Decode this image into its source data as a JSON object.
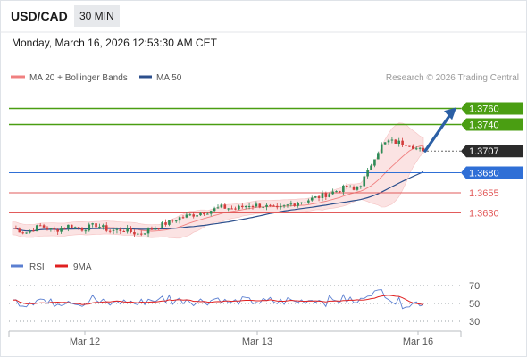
{
  "header": {
    "symbol": "USD/CAD",
    "interval": "30 MIN",
    "timestamp": "Monday, March 16, 2026 12:53:30 AM CET"
  },
  "legend": {
    "bb_label": "MA 20 + Bollinger Bands",
    "ma50_label": "MA 50",
    "source": "Research © 2026 Trading Central"
  },
  "rsi_legend": {
    "rsi_label": "RSI",
    "ma_label": "9MA"
  },
  "colors": {
    "up": "#2e8b57",
    "down": "#d23c3c",
    "green_level": "#4a9e12",
    "blue_level": "#2f6fd6",
    "red_level": "#e25b5b",
    "arrow": "#2b5fa5",
    "ma50": "#2c4f8c",
    "bb": "#f08080"
  },
  "levels": [
    {
      "value": 1.376,
      "label": "1.3760",
      "kind": "resistance"
    },
    {
      "value": 1.374,
      "label": "1.3740",
      "kind": "resistance"
    },
    {
      "value": 1.368,
      "label": "1.3680",
      "kind": "pivot"
    },
    {
      "value": 1.3655,
      "label": "1.3655",
      "kind": "support"
    },
    {
      "value": 1.363,
      "label": "1.3630",
      "kind": "support"
    }
  ],
  "last_price": {
    "value": 1.3707,
    "label": "1.3707"
  },
  "rsi_ticks": [
    "70",
    "50",
    "30"
  ],
  "chart_data": {
    "type": "line",
    "x_labels": [
      "Mar 12",
      "Mar 13",
      "Mar 16"
    ],
    "price_path": [
      [
        0,
        1.3611
      ],
      [
        4,
        1.3606
      ],
      [
        8,
        1.3614
      ],
      [
        12,
        1.3608
      ],
      [
        16,
        1.3614
      ],
      [
        20,
        1.361
      ],
      [
        24,
        1.3615
      ],
      [
        28,
        1.3608
      ],
      [
        32,
        1.3609
      ],
      [
        36,
        1.3604
      ],
      [
        40,
        1.361
      ],
      [
        44,
        1.3617
      ],
      [
        48,
        1.3624
      ],
      [
        52,
        1.3628
      ],
      [
        56,
        1.3632
      ],
      [
        60,
        1.3637
      ],
      [
        64,
        1.3635
      ],
      [
        68,
        1.364
      ],
      [
        72,
        1.3639
      ],
      [
        76,
        1.3634
      ],
      [
        80,
        1.3641
      ],
      [
        84,
        1.3645
      ],
      [
        88,
        1.365
      ],
      [
        92,
        1.3656
      ],
      [
        96,
        1.3662
      ],
      [
        98,
        1.3658
      ],
      [
        100,
        1.3666
      ],
      [
        102,
        1.3681
      ],
      [
        104,
        1.37
      ],
      [
        106,
        1.3714
      ],
      [
        108,
        1.3719
      ],
      [
        110,
        1.3718
      ],
      [
        112,
        1.3717
      ],
      [
        114,
        1.3716
      ],
      [
        116,
        1.371
      ],
      [
        118,
        1.3707
      ]
    ],
    "price_ylim": [
      1.3595,
      1.3775
    ],
    "rsi_ylim": [
      20,
      80
    ],
    "arrow": {
      "from": [
        118,
        1.3707
      ],
      "to": [
        127,
        1.3758
      ]
    }
  }
}
